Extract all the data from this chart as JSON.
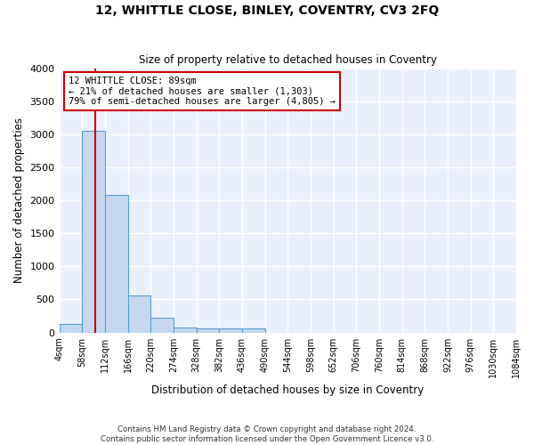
{
  "title": "12, WHITTLE CLOSE, BINLEY, COVENTRY, CV3 2FQ",
  "subtitle": "Size of property relative to detached houses in Coventry",
  "xlabel": "Distribution of detached houses by size in Coventry",
  "ylabel": "Number of detached properties",
  "bin_labels": [
    "4sqm",
    "58sqm",
    "112sqm",
    "166sqm",
    "220sqm",
    "274sqm",
    "328sqm",
    "382sqm",
    "436sqm",
    "490sqm",
    "544sqm",
    "598sqm",
    "652sqm",
    "706sqm",
    "760sqm",
    "814sqm",
    "868sqm",
    "922sqm",
    "976sqm",
    "1030sqm",
    "1084sqm"
  ],
  "bin_edges": [
    4,
    58,
    112,
    166,
    220,
    274,
    328,
    382,
    436,
    490,
    544,
    598,
    652,
    706,
    760,
    814,
    868,
    922,
    976,
    1030,
    1084
  ],
  "bar_heights": [
    130,
    3050,
    2080,
    560,
    220,
    75,
    60,
    55,
    60,
    0,
    0,
    0,
    0,
    0,
    0,
    0,
    0,
    0,
    0,
    0
  ],
  "bar_color": "#c5d8f0",
  "bar_edge_color": "#5a9fd4",
  "property_size": 89,
  "red_line_color": "#cc0000",
  "annotation_line1": "12 WHITTLE CLOSE: 89sqm",
  "annotation_line2": "← 21% of detached houses are smaller (1,303)",
  "annotation_line3": "79% of semi-detached houses are larger (4,805) →",
  "annotation_box_color": "#cc0000",
  "annotation_box_facecolor": "white",
  "ylim": [
    0,
    4000
  ],
  "yticks": [
    0,
    500,
    1000,
    1500,
    2000,
    2500,
    3000,
    3500,
    4000
  ],
  "background_color": "#eaf0fb",
  "grid_color": "white",
  "footer_line1": "Contains HM Land Registry data © Crown copyright and database right 2024.",
  "footer_line2": "Contains public sector information licensed under the Open Government Licence v3.0."
}
